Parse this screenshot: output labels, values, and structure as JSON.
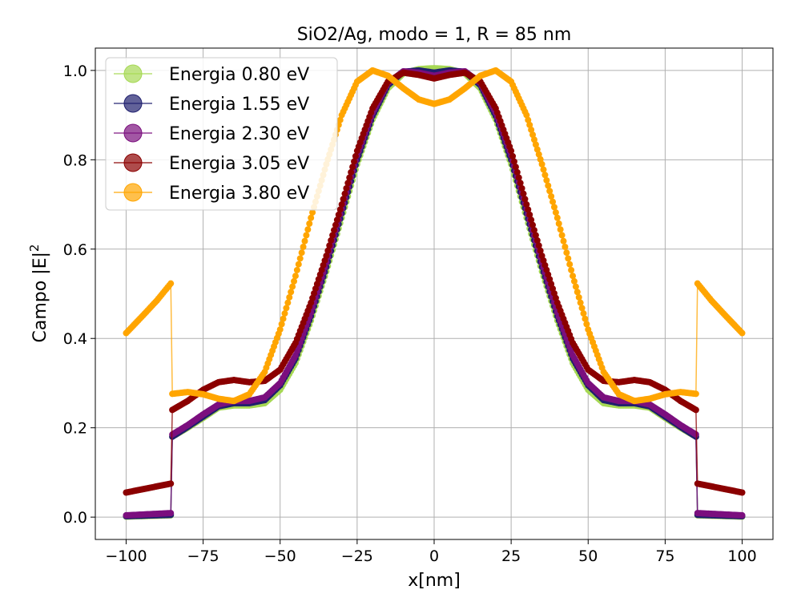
{
  "chart_data": {
    "type": "line",
    "title": "SiO2/Ag, modo = 1, R = 85 nm",
    "xlabel": "x[nm]",
    "ylabel": "Campo |E|",
    "ylabel_sup": "2",
    "xlim": [
      -110,
      110
    ],
    "ylim": [
      -0.05,
      1.05
    ],
    "xticks": [
      -100,
      -75,
      -50,
      -25,
      0,
      25,
      50,
      75,
      100
    ],
    "xtick_labels": [
      "−100",
      "−75",
      "−50",
      "−25",
      "0",
      "25",
      "50",
      "75",
      "100"
    ],
    "yticks": [
      0.0,
      0.2,
      0.4,
      0.6,
      0.8,
      1.0
    ],
    "ytick_labels": [
      "0.0",
      "0.2",
      "0.4",
      "0.6",
      "0.8",
      "1.0"
    ],
    "grid": true,
    "legend_position": "top-left",
    "series": [
      {
        "name": "Energia 0.80 eV",
        "color": "#a6d854",
        "points": [
          [
            -100,
            0.001
          ],
          [
            -85.5,
            0.004
          ],
          [
            -85,
            0.18
          ],
          [
            -80,
            0.2
          ],
          [
            -75,
            0.222
          ],
          [
            -70,
            0.245
          ],
          [
            -65,
            0.25
          ],
          [
            -60,
            0.25
          ],
          [
            -55,
            0.255
          ],
          [
            -50,
            0.285
          ],
          [
            -45,
            0.345
          ],
          [
            -40,
            0.44
          ],
          [
            -35,
            0.55
          ],
          [
            -30,
            0.67
          ],
          [
            -25,
            0.79
          ],
          [
            -20,
            0.89
          ],
          [
            -15,
            0.96
          ],
          [
            -10,
            0.993
          ],
          [
            -5,
            1.003
          ],
          [
            0,
            1.005
          ],
          [
            5,
            1.003
          ],
          [
            10,
            0.993
          ],
          [
            15,
            0.96
          ],
          [
            20,
            0.89
          ],
          [
            25,
            0.79
          ],
          [
            30,
            0.67
          ],
          [
            35,
            0.55
          ],
          [
            40,
            0.44
          ],
          [
            45,
            0.345
          ],
          [
            50,
            0.285
          ],
          [
            55,
            0.255
          ],
          [
            60,
            0.25
          ],
          [
            65,
            0.25
          ],
          [
            70,
            0.245
          ],
          [
            75,
            0.222
          ],
          [
            80,
            0.2
          ],
          [
            85,
            0.18
          ],
          [
            85.5,
            0.004
          ],
          [
            100,
            0.001
          ]
        ]
      },
      {
        "name": "Energia 1.55 eV",
        "color": "#1f1f6e",
        "points": [
          [
            -100,
            0.002
          ],
          [
            -85.5,
            0.005
          ],
          [
            -85,
            0.18
          ],
          [
            -80,
            0.202
          ],
          [
            -75,
            0.225
          ],
          [
            -70,
            0.248
          ],
          [
            -65,
            0.255
          ],
          [
            -60,
            0.255
          ],
          [
            -55,
            0.262
          ],
          [
            -50,
            0.295
          ],
          [
            -45,
            0.355
          ],
          [
            -40,
            0.45
          ],
          [
            -35,
            0.56
          ],
          [
            -30,
            0.68
          ],
          [
            -25,
            0.8
          ],
          [
            -20,
            0.898
          ],
          [
            -15,
            0.967
          ],
          [
            -10,
            0.997
          ],
          [
            -5,
            1.0
          ],
          [
            0,
            0.995
          ],
          [
            5,
            1.0
          ],
          [
            10,
            0.997
          ],
          [
            15,
            0.967
          ],
          [
            20,
            0.898
          ],
          [
            25,
            0.8
          ],
          [
            30,
            0.68
          ],
          [
            35,
            0.56
          ],
          [
            40,
            0.45
          ],
          [
            45,
            0.355
          ],
          [
            50,
            0.295
          ],
          [
            55,
            0.262
          ],
          [
            60,
            0.255
          ],
          [
            65,
            0.255
          ],
          [
            70,
            0.248
          ],
          [
            75,
            0.225
          ],
          [
            80,
            0.202
          ],
          [
            85,
            0.18
          ],
          [
            85.5,
            0.005
          ],
          [
            100,
            0.002
          ]
        ]
      },
      {
        "name": "Energia 2.30 eV",
        "color": "#7b0f7e",
        "points": [
          [
            -100,
            0.004
          ],
          [
            -85.5,
            0.009
          ],
          [
            -85,
            0.185
          ],
          [
            -80,
            0.206
          ],
          [
            -75,
            0.23
          ],
          [
            -70,
            0.252
          ],
          [
            -65,
            0.26
          ],
          [
            -60,
            0.26
          ],
          [
            -55,
            0.268
          ],
          [
            -50,
            0.3
          ],
          [
            -45,
            0.362
          ],
          [
            -40,
            0.458
          ],
          [
            -35,
            0.57
          ],
          [
            -30,
            0.69
          ],
          [
            -25,
            0.81
          ],
          [
            -20,
            0.905
          ],
          [
            -15,
            0.972
          ],
          [
            -10,
            0.998
          ],
          [
            -5,
            0.995
          ],
          [
            0,
            0.988
          ],
          [
            5,
            0.995
          ],
          [
            10,
            0.998
          ],
          [
            15,
            0.972
          ],
          [
            20,
            0.905
          ],
          [
            25,
            0.81
          ],
          [
            30,
            0.69
          ],
          [
            35,
            0.57
          ],
          [
            40,
            0.458
          ],
          [
            45,
            0.362
          ],
          [
            50,
            0.3
          ],
          [
            55,
            0.268
          ],
          [
            60,
            0.26
          ],
          [
            65,
            0.26
          ],
          [
            70,
            0.252
          ],
          [
            75,
            0.23
          ],
          [
            80,
            0.206
          ],
          [
            85,
            0.185
          ],
          [
            85.5,
            0.009
          ],
          [
            100,
            0.004
          ]
        ]
      },
      {
        "name": "Energia 3.05 eV",
        "color": "#8b0000",
        "points": [
          [
            -100,
            0.055
          ],
          [
            -85.5,
            0.075
          ],
          [
            -85,
            0.24
          ],
          [
            -80,
            0.26
          ],
          [
            -75,
            0.285
          ],
          [
            -70,
            0.302
          ],
          [
            -65,
            0.307
          ],
          [
            -60,
            0.302
          ],
          [
            -55,
            0.305
          ],
          [
            -50,
            0.33
          ],
          [
            -45,
            0.39
          ],
          [
            -40,
            0.48
          ],
          [
            -35,
            0.585
          ],
          [
            -30,
            0.7
          ],
          [
            -25,
            0.82
          ],
          [
            -20,
            0.915
          ],
          [
            -15,
            0.975
          ],
          [
            -10,
            0.995
          ],
          [
            -5,
            0.99
          ],
          [
            0,
            0.982
          ],
          [
            5,
            0.99
          ],
          [
            10,
            0.995
          ],
          [
            15,
            0.975
          ],
          [
            20,
            0.915
          ],
          [
            25,
            0.82
          ],
          [
            30,
            0.7
          ],
          [
            35,
            0.585
          ],
          [
            40,
            0.48
          ],
          [
            45,
            0.39
          ],
          [
            50,
            0.33
          ],
          [
            55,
            0.305
          ],
          [
            60,
            0.302
          ],
          [
            65,
            0.307
          ],
          [
            70,
            0.302
          ],
          [
            75,
            0.285
          ],
          [
            80,
            0.26
          ],
          [
            85,
            0.24
          ],
          [
            85.5,
            0.075
          ],
          [
            100,
            0.055
          ]
        ]
      },
      {
        "name": "Energia 3.80 eV",
        "color": "#ffa500",
        "points": [
          [
            -100,
            0.412
          ],
          [
            -95,
            0.448
          ],
          [
            -90,
            0.485
          ],
          [
            -85.5,
            0.523
          ],
          [
            -85,
            0.276
          ],
          [
            -80,
            0.28
          ],
          [
            -75,
            0.275
          ],
          [
            -70,
            0.265
          ],
          [
            -65,
            0.26
          ],
          [
            -60,
            0.275
          ],
          [
            -55,
            0.325
          ],
          [
            -50,
            0.42
          ],
          [
            -45,
            0.54
          ],
          [
            -40,
            0.67
          ],
          [
            -35,
            0.79
          ],
          [
            -30,
            0.9
          ],
          [
            -25,
            0.975
          ],
          [
            -20,
            1.0
          ],
          [
            -15,
            0.988
          ],
          [
            -10,
            0.96
          ],
          [
            -5,
            0.935
          ],
          [
            0,
            0.925
          ],
          [
            5,
            0.935
          ],
          [
            10,
            0.96
          ],
          [
            15,
            0.988
          ],
          [
            20,
            1.0
          ],
          [
            25,
            0.975
          ],
          [
            30,
            0.9
          ],
          [
            35,
            0.79
          ],
          [
            40,
            0.67
          ],
          [
            45,
            0.54
          ],
          [
            50,
            0.42
          ],
          [
            55,
            0.325
          ],
          [
            60,
            0.275
          ],
          [
            65,
            0.26
          ],
          [
            70,
            0.265
          ],
          [
            75,
            0.275
          ],
          [
            80,
            0.28
          ],
          [
            85,
            0.276
          ],
          [
            85.5,
            0.523
          ],
          [
            90,
            0.485
          ],
          [
            95,
            0.448
          ],
          [
            100,
            0.412
          ]
        ]
      }
    ]
  }
}
